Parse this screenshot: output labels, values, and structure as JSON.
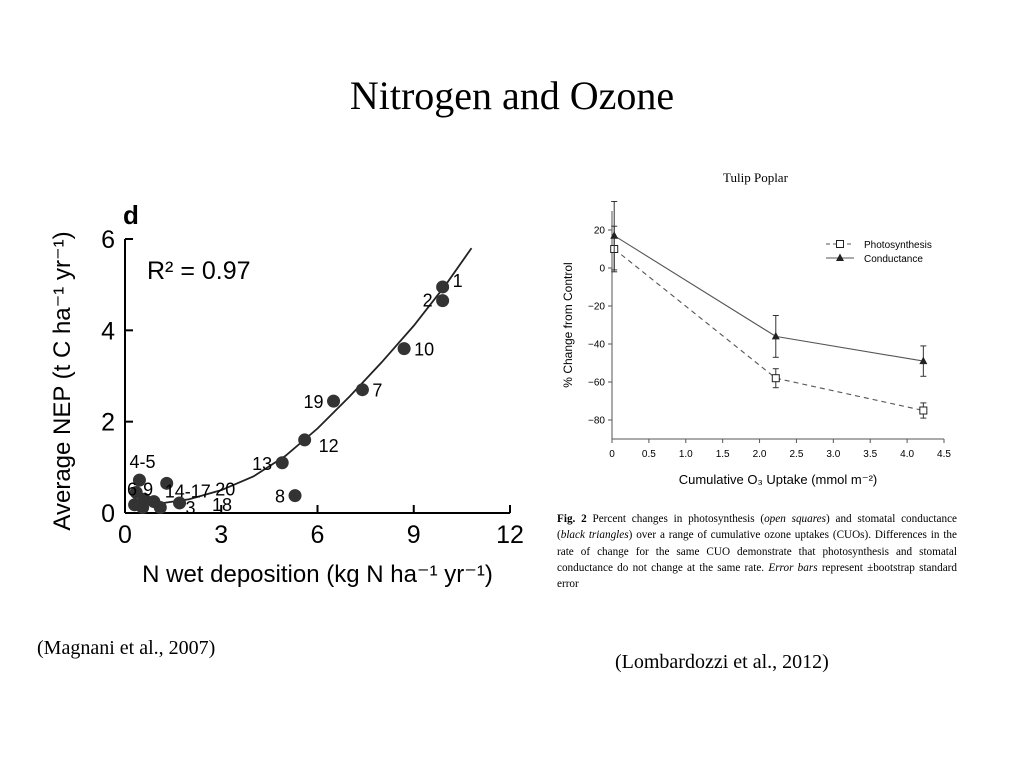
{
  "slide": {
    "title": "Nitrogen and Ozone",
    "citation_left": "(Magnani et al., 2007)",
    "citation_right": "(Lombardozzi et al., 2012)"
  },
  "caption": {
    "label": "Fig. 2",
    "p1": " Percent changes in photosynthesis (",
    "i1": "open squares",
    "p2": ") and stomatal conductance (",
    "i2": "black triangles",
    "p3": ") over a range of cumulative ozone uptakes (CUOs). Differences in the rate of change for the same CUO demonstrate that photosynthesis and stomatal conductance do not change at the same rate. ",
    "i3": "Error bars",
    "p4": " represent ±bootstrap standard error"
  },
  "chart_data": [
    {
      "type": "scatter",
      "panel_letter": "d",
      "annotation": "R² = 0.97",
      "xlabel": "N wet deposition (kg N ha⁻¹ yr⁻¹)",
      "ylabel": "Average NEP (t C ha⁻¹ yr⁻¹)",
      "xlim": [
        0,
        12
      ],
      "ylim": [
        0,
        6
      ],
      "xticks": [
        0,
        3,
        6,
        9,
        12
      ],
      "yticks": [
        0,
        2,
        4,
        6
      ],
      "grid": false,
      "points": [
        {
          "x": 9.9,
          "y": 4.95,
          "label": "1"
        },
        {
          "x": 9.9,
          "y": 4.65,
          "label": "2"
        },
        {
          "x": 8.7,
          "y": 3.6,
          "label": "10"
        },
        {
          "x": 7.4,
          "y": 2.7,
          "label": "7"
        },
        {
          "x": 6.5,
          "y": 2.45,
          "label": "19"
        },
        {
          "x": 5.6,
          "y": 1.6,
          "label": "12"
        },
        {
          "x": 4.9,
          "y": 1.1,
          "label": "13"
        },
        {
          "x": 5.3,
          "y": 0.38,
          "label": "8"
        },
        {
          "x": 0.45,
          "y": 0.72,
          "label": "4-5"
        },
        {
          "x": 0.35,
          "y": 0.45,
          "label": ""
        },
        {
          "x": 0.6,
          "y": 0.3,
          "label": ""
        },
        {
          "x": 0.9,
          "y": 0.25,
          "label": ""
        },
        {
          "x": 1.3,
          "y": 0.65,
          "label": "14-17"
        },
        {
          "x": 1.7,
          "y": 0.22,
          "label": "3"
        },
        {
          "x": 0.55,
          "y": 0.12,
          "label": ""
        },
        {
          "x": 1.1,
          "y": 0.12,
          "label": ""
        },
        {
          "x": 0.3,
          "y": 0.18,
          "label": ""
        }
      ],
      "extra_labels": [
        {
          "text": "6",
          "x": 0.25,
          "y": 0.52
        },
        {
          "text": "9",
          "x": 0.75,
          "y": 0.52
        },
        {
          "text": "20",
          "x": 3.0,
          "y": 0.52
        },
        {
          "text": "18",
          "x": 2.9,
          "y": 0.18
        }
      ],
      "fit_curve": {
        "x": [
          0.3,
          1.0,
          2.0,
          3.0,
          4.0,
          5.0,
          6.0,
          7.0,
          8.0,
          9.0,
          10.0,
          10.8
        ],
        "y": [
          0.2,
          0.2,
          0.3,
          0.5,
          0.8,
          1.25,
          1.85,
          2.55,
          3.3,
          4.1,
          5.0,
          5.8
        ]
      }
    },
    {
      "type": "line",
      "title": "Tulip Poplar",
      "xlabel": "Cumulative O₃ Uptake (mmol m⁻²)",
      "ylabel": "% Change from Control",
      "xlim": [
        0,
        4.5
      ],
      "ylim": [
        -90,
        30
      ],
      "xticks": [
        "0",
        "0.5",
        "1.0",
        "1.5",
        "2.0",
        "2.5",
        "3.0",
        "3.5",
        "4.0",
        "4.5"
      ],
      "yticks": [
        20,
        0,
        -20,
        -40,
        -60,
        -80
      ],
      "ytick_labels": [
        "20",
        "0",
        "−20",
        "−40",
        "−60",
        "−80"
      ],
      "grid": false,
      "legend_position": "top-right",
      "series": [
        {
          "name": "Photosynthesis",
          "style": "dashed",
          "marker": "open-square",
          "x": [
            0.03,
            2.22,
            4.22
          ],
          "y": [
            10,
            -58,
            -75
          ],
          "err": [
            12,
            5,
            4
          ]
        },
        {
          "name": "Conductance",
          "style": "solid",
          "marker": "filled-triangle",
          "x": [
            0.03,
            2.22,
            4.22
          ],
          "y": [
            17,
            -36,
            -49
          ],
          "err": [
            18,
            11,
            8
          ]
        }
      ],
      "colors": {
        "line": "#555555",
        "marker": "#222222"
      }
    }
  ]
}
